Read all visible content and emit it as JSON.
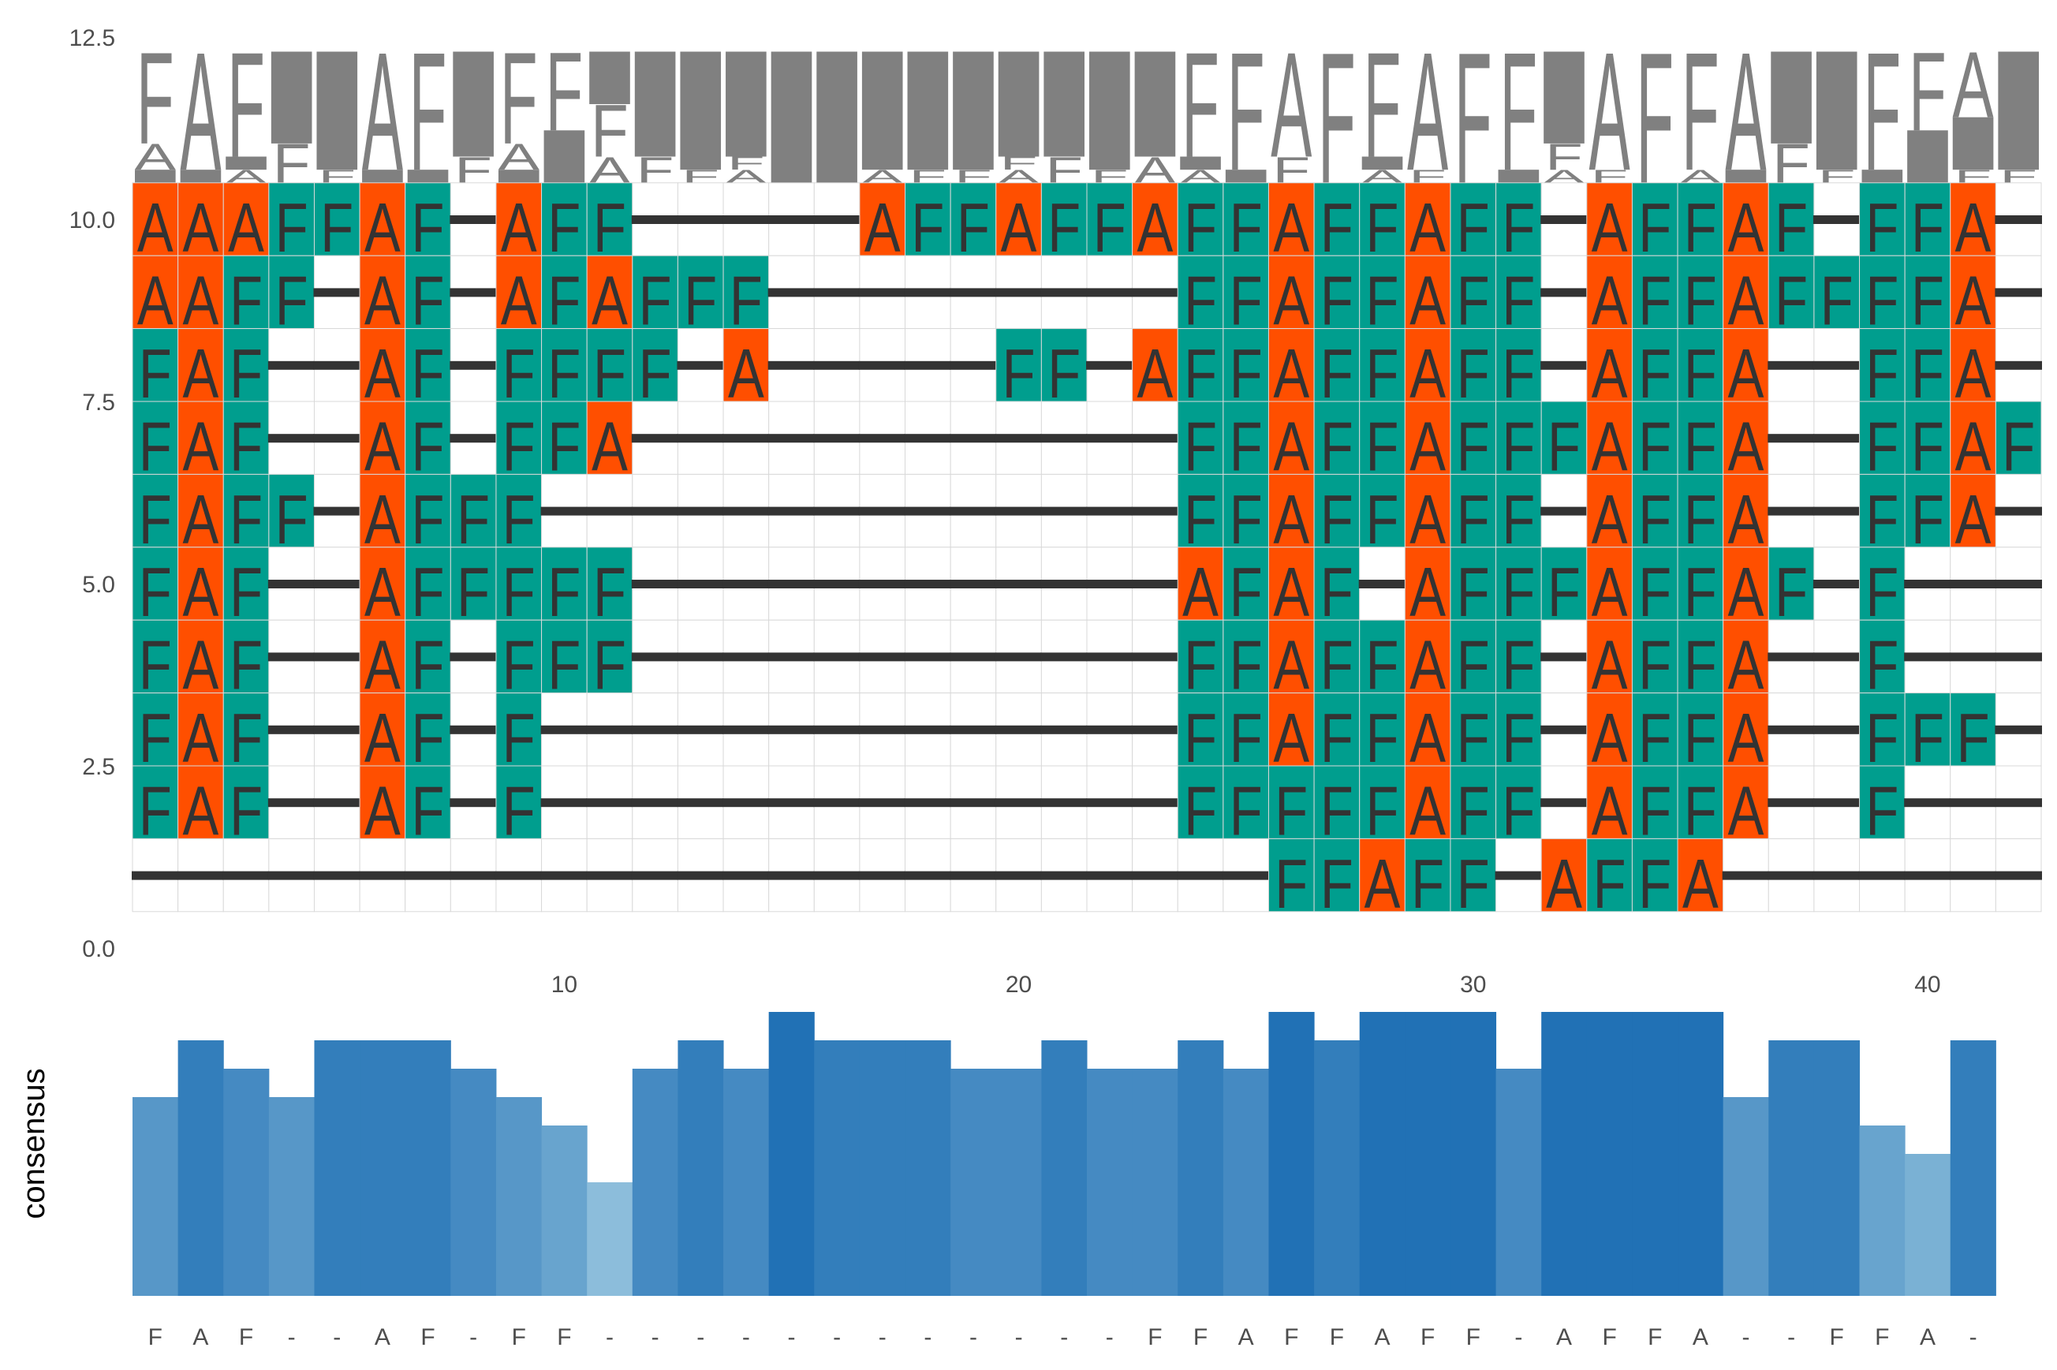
{
  "chart_data": [
    {
      "type": "heatmap",
      "title": "",
      "xlabel": "",
      "ylabel": "",
      "ylim": [
        0,
        12.5
      ],
      "xlim": [
        0.5,
        41.5
      ],
      "y_ticks": [
        "0.0",
        "2.5",
        "5.0",
        "7.5",
        "10.0",
        "12.5"
      ],
      "y_tick_values": [
        0,
        2.5,
        5,
        7.5,
        10,
        12.5
      ],
      "grid": true,
      "legend": "none",
      "colors": {
        "A": "#FF4F00",
        "F": "#009E8E",
        "-": "#FFFFFF",
        "dash": "#333333",
        "grid": "#d9d9d9",
        "logo": "#808080"
      },
      "rows": [
        "AAAFFAF-AFF-----AFFAFFAFFAFFAFF-AFFAF-FFA-",
        "AAFF-AF-AFAFFF---------FFAFFAFF-AFFAFFFFA-",
        "FAF--AF-FFFF-A-----FF-AFFAFFAFF-AFFA--FFA-",
        "FAF--AF-FFA------------FFAFFAFFFAFFA--FFAF",
        "FAFF-AFFF--------------FFAFFAFF-AFFA--FFA-",
        "FAF--AFFFFF------------AFAF-AFFFAFFAF-F---",
        "FAF--AF-FFF------------FFAFFAFF-AFFA--F---",
        "FAF--AF-F--------------FFAFFAFF-AFFA--FFF-",
        "FAF--AF-F--------------FFFFFAFF-AFFA--F---",
        "-------------------------FFAFF-AFFA-------"
      ],
      "row_y_values": [
        10,
        9,
        8,
        7,
        6,
        5,
        4,
        3,
        2,
        1
      ]
    },
    {
      "type": "bar",
      "title": "",
      "xlabel": "",
      "ylabel": "consensus",
      "x_ticks": [
        "10",
        "20",
        "30",
        "40"
      ],
      "x_tick_values": [
        10,
        20,
        30,
        40
      ],
      "categories": [
        1,
        2,
        3,
        4,
        5,
        6,
        7,
        8,
        9,
        10,
        11,
        12,
        13,
        14,
        15,
        16,
        17,
        18,
        19,
        20,
        21,
        22,
        23,
        24,
        25,
        26,
        27,
        28,
        29,
        30,
        31,
        32,
        33,
        34,
        35,
        36,
        37,
        38,
        39,
        40,
        41
      ],
      "values": [
        7,
        9,
        8,
        7,
        9,
        9,
        9,
        8,
        7,
        6,
        4,
        8,
        9,
        8,
        10,
        9,
        9,
        9,
        8,
        8,
        9,
        8,
        8,
        9,
        8,
        10,
        9,
        10,
        10,
        10,
        8,
        10,
        10,
        10,
        10,
        7,
        9,
        9,
        6,
        5,
        9
      ],
      "ylim": [
        0,
        10
      ],
      "consensus_letters": [
        "F",
        "A",
        "F",
        "-",
        "-",
        "A",
        "F",
        "-",
        "F",
        "F",
        "-",
        "-",
        "-",
        "-",
        "-",
        "-",
        "-",
        "-",
        "-",
        "-",
        "-",
        "-",
        "F",
        "F",
        "A",
        "F",
        "F",
        "A",
        "F",
        "F",
        "-",
        "A",
        "F",
        "F",
        "A",
        "-",
        "-",
        "F",
        "F",
        "A",
        "-"
      ]
    }
  ]
}
